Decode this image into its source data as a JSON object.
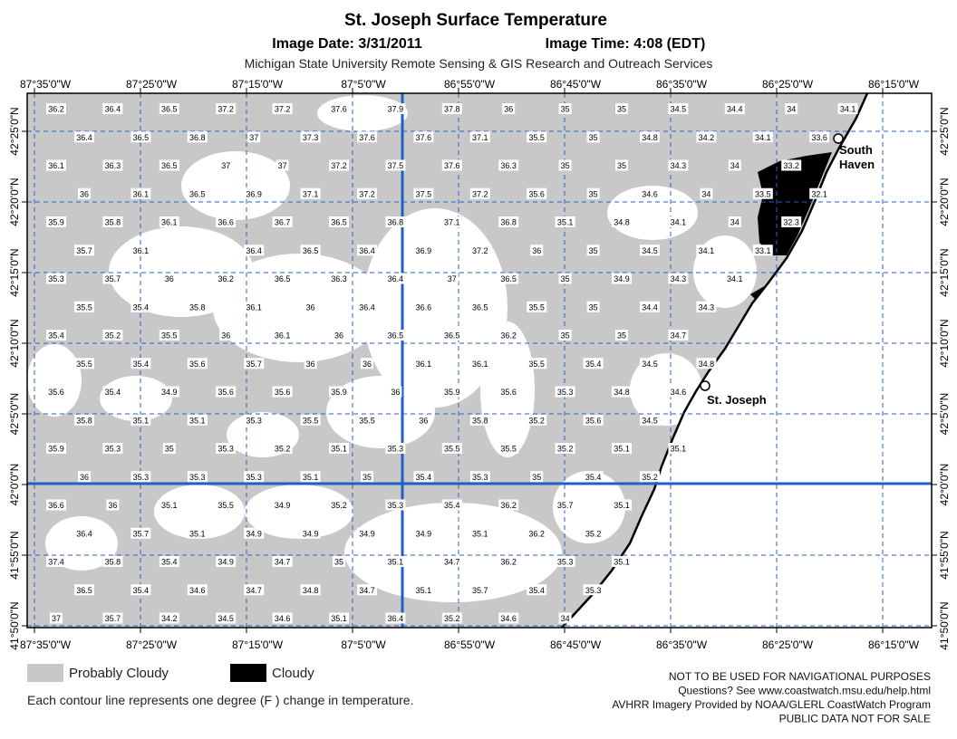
{
  "header": {
    "title": "St. Joseph Surface Temperature",
    "image_date": "Image Date: 3/31/2011",
    "image_time": "Image Time: 4:08 (EDT)",
    "credit": "Michigan State University Remote Sensing & GIS Research and Outreach Services"
  },
  "map": {
    "longitude_labels": [
      "87°35'0\"W",
      "87°25'0\"W",
      "87°15'0\"W",
      "87°5'0\"W",
      "86°55'0\"W",
      "86°45'0\"W",
      "86°35'0\"W",
      "86°25'0\"W",
      "86°15'0\"W"
    ],
    "latitude_labels": [
      "42°25'0\"N",
      "42°20'0\"N",
      "42°15'0\"N",
      "42°10'0\"N",
      "42°5'0\"N",
      "42°0'0\"N",
      "41°55'0\"N",
      "41°50'0\"N"
    ],
    "places": [
      {
        "lines": [
          "South",
          "Haven"
        ]
      },
      {
        "lines": [
          "St. Joseph"
        ]
      }
    ],
    "temperature_rows": [
      [
        36.2,
        36.4,
        36.5,
        37.2,
        37.2,
        37.6,
        37.9,
        37.8,
        36,
        35,
        35,
        34.5,
        34.4,
        34,
        34.1
      ],
      [
        36.4,
        36.5,
        36.8,
        37,
        37.3,
        37.6,
        37.6,
        37.1,
        35.5,
        35,
        34.8,
        34.2,
        34.1,
        33.6
      ],
      [
        36.1,
        36.3,
        36.5,
        37,
        37,
        37.2,
        37.5,
        37.6,
        36.3,
        35,
        35,
        34.3,
        34,
        33.2
      ],
      [
        36,
        36.1,
        36.5,
        36.9,
        37.1,
        37.2,
        37.5,
        37.2,
        35.6,
        35,
        34.6,
        34,
        33.5,
        32.1
      ],
      [
        35.9,
        35.8,
        36.1,
        36.6,
        36.7,
        36.5,
        36.8,
        37.1,
        36.8,
        35.1,
        34.8,
        34.1,
        34,
        32.3
      ],
      [
        35.7,
        36.1,
        null,
        36.4,
        36.5,
        36.4,
        36.9,
        37.2,
        36,
        35,
        34.5,
        34.1,
        33.1
      ],
      [
        35.3,
        35.7,
        36,
        36.2,
        36.5,
        36.3,
        36.4,
        37,
        36.5,
        35,
        34.9,
        34.3,
        34.1
      ],
      [
        35.5,
        35.4,
        35.8,
        36.1,
        36,
        36.4,
        36.6,
        36.5,
        35.5,
        35,
        34.4,
        34.3
      ],
      [
        35.4,
        35.2,
        35.5,
        36,
        36.1,
        36,
        36.5,
        36.5,
        36.2,
        35,
        35,
        34.7
      ],
      [
        35.5,
        35.4,
        35.6,
        35.7,
        36,
        36,
        36.1,
        36.1,
        35.5,
        35.4,
        34.5,
        34.8
      ],
      [
        35.6,
        35.4,
        34.9,
        35.6,
        35.6,
        35.9,
        36,
        35.9,
        35.6,
        35.3,
        34.8,
        34.6
      ],
      [
        35.8,
        35.1,
        35.1,
        35.3,
        35.5,
        35.5,
        36,
        35.8,
        35.2,
        35.6,
        34.5
      ],
      [
        35.9,
        35.3,
        35,
        35.3,
        35.2,
        35.1,
        35.3,
        35.5,
        35.5,
        35.2,
        35.1,
        35.1
      ],
      [
        36,
        35.3,
        35.3,
        35.3,
        35.1,
        35,
        35.4,
        35.3,
        35,
        35.4,
        35.2
      ],
      [
        36.6,
        36,
        35.1,
        35.5,
        34.9,
        35.2,
        35.3,
        35.4,
        36.2,
        35.7,
        35.1
      ],
      [
        36.4,
        35.7,
        35.1,
        34.9,
        34.9,
        34.9,
        34.9,
        35.1,
        36.2,
        35.2
      ],
      [
        37.4,
        35.8,
        35.4,
        34.9,
        34.7,
        35,
        35.1,
        34.7,
        36.2,
        35.3,
        35.1
      ],
      [
        36.5,
        35.4,
        34.6,
        34.7,
        34.8,
        34.7,
        35.1,
        35.7,
        35.4,
        35.3
      ],
      [
        37,
        35.7,
        34.2,
        34.5,
        34.6,
        35.1,
        36.4,
        35.2,
        34.6,
        34
      ]
    ]
  },
  "legend": {
    "items": [
      {
        "label": "Probably Cloudy",
        "color": "#c8c8c8"
      },
      {
        "label": "Cloudy",
        "color": "#000000"
      }
    ],
    "note": "Each contour line represents one degree (F ) change in temperature."
  },
  "footer": [
    "NOT TO BE USED FOR NAVIGATIONAL PURPOSES",
    "Questions?  See www.coastwatch.msu.edu/help.html",
    "AVHRR Imagery Provided by NOAA/GLERL CoastWatch Program",
    "PUBLIC DATA NOT FOR SALE"
  ]
}
